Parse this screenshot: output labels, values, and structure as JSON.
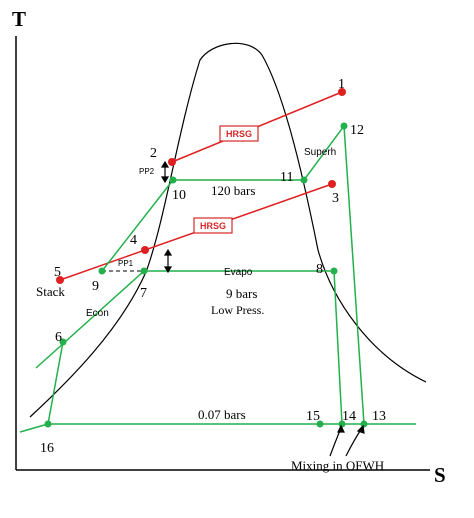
{
  "axes": {
    "y": "T",
    "x": "S"
  },
  "points": {
    "p1": "1",
    "p2": "2",
    "p3": "3",
    "p4": "4",
    "p5": "5",
    "p6": "6",
    "p7": "7",
    "p8": "8",
    "p9": "9",
    "p10": "10",
    "p11": "11",
    "p12": "12",
    "p13": "13",
    "p14": "14",
    "p15": "15",
    "p16": "16"
  },
  "labels": {
    "hrsg_top": "HRSG",
    "hrsg_mid": "HRSG",
    "superh": "Superh",
    "pressure_high": "120 bars",
    "evapo": "Evapo",
    "pressure_low": "9 bars",
    "low_press": "Low Press.",
    "econ": "Econ",
    "stack": "Stack",
    "pressure_cond": "0.07 bars",
    "mixing": "Mixing in OFWH",
    "pp1": "PP1",
    "pp2": "PP2"
  },
  "colors": {
    "steam_cycle": "#22b14c",
    "gas_line": "#e02020",
    "dome": "#000000",
    "hrsg_box": "#d62828"
  }
}
